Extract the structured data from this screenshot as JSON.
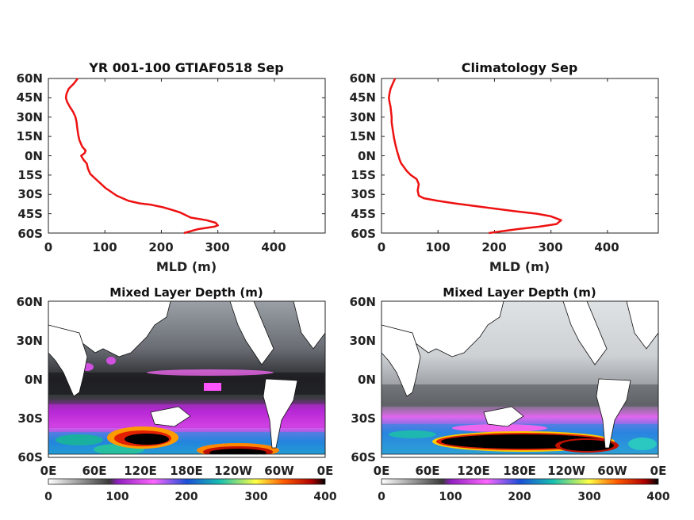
{
  "figure": {
    "top_left": {
      "title": "YR 001-100 GTIAF0518 Sep",
      "xlabel": "MLD (m)",
      "xticks": [
        "0",
        "100",
        "200",
        "300",
        "400"
      ],
      "yticks": [
        "60N",
        "45N",
        "30N",
        "15N",
        "0N",
        "15S",
        "30S",
        "45S",
        "60S"
      ]
    },
    "top_right": {
      "title": "Climatology Sep",
      "xlabel": "MLD (m)",
      "xticks": [
        "0",
        "100",
        "200",
        "300",
        "400"
      ],
      "yticks": [
        "60N",
        "45N",
        "30N",
        "15N",
        "0N",
        "15S",
        "30S",
        "45S",
        "60S"
      ]
    },
    "bottom_left": {
      "title": "Mixed Layer Depth (m)",
      "lon_ticks": [
        "0E",
        "60E",
        "120E",
        "180E",
        "120W",
        "60W",
        "0E"
      ],
      "lat_ticks": [
        "60N",
        "30N",
        "0N",
        "30S",
        "60S"
      ],
      "colorbar_ticks": [
        "0",
        "100",
        "200",
        "300",
        "400"
      ]
    },
    "bottom_right": {
      "title": "Mixed Layer Depth (m)",
      "lon_ticks": [
        "0E",
        "60E",
        "120E",
        "180E",
        "120W",
        "60W",
        "0E"
      ],
      "lat_ticks": [
        "60N",
        "30N",
        "0N",
        "30S",
        "60S"
      ],
      "colorbar_ticks": [
        "0",
        "100",
        "200",
        "300",
        "400"
      ]
    },
    "line_color": "#ee1111"
  },
  "chart_data": [
    {
      "type": "line",
      "title": "YR 001-100 GTIAF0518 Sep",
      "xlabel": "MLD (m)",
      "ylabel": "",
      "xlim": [
        0,
        490
      ],
      "ylim": [
        -60,
        60
      ],
      "series": [
        {
          "x": [
            52,
            45,
            36,
            32,
            31,
            33,
            38,
            44,
            48,
            50,
            51,
            53,
            55,
            60,
            66,
            64,
            58,
            62,
            68,
            70,
            74,
            86,
            101,
            121,
            142,
            162,
            182,
            203,
            219,
            233,
            252,
            280,
            296,
            300,
            294,
            265,
            240
          ],
          "y": [
            60,
            56,
            52,
            48,
            45,
            42,
            38,
            34,
            30,
            26,
            22,
            16,
            12,
            7,
            4,
            2,
            0,
            -3,
            -6,
            -10,
            -14,
            -19,
            -25,
            -31,
            -35,
            -37,
            -38,
            -40,
            -42,
            -44,
            -48,
            -50,
            -52,
            -54,
            -55,
            -57,
            -60
          ]
        }
      ]
    },
    {
      "type": "line",
      "title": "Climatology Sep",
      "xlabel": "MLD (m)",
      "ylabel": "",
      "xlim": [
        0,
        490
      ],
      "ylim": [
        -60,
        60
      ],
      "series": [
        {
          "x": [
            24,
            20,
            16,
            14,
            13,
            14,
            16,
            17,
            18,
            18,
            20,
            22,
            25,
            28,
            30,
            32,
            35,
            40,
            45,
            52,
            62,
            66,
            64,
            66,
            75,
            100,
            130,
            165,
            200,
            235,
            275,
            300,
            318,
            310,
            280,
            240,
            190
          ],
          "y": [
            60,
            56,
            52,
            48,
            45,
            42,
            38,
            34,
            30,
            26,
            20,
            14,
            8,
            3,
            0,
            -3,
            -6,
            -9,
            -12,
            -15,
            -18,
            -22,
            -27,
            -31,
            -33,
            -35,
            -37,
            -39,
            -41,
            -43,
            -45,
            -47,
            -50,
            -53,
            -55,
            -57,
            -60
          ]
        }
      ]
    },
    {
      "type": "heatmap",
      "title": "Mixed Layer Depth (m)",
      "x_ticks": [
        "0E",
        "60E",
        "120E",
        "180E",
        "120W",
        "60W",
        "0E"
      ],
      "y_ticks": [
        "60N",
        "30N",
        "0N",
        "30S",
        "60S"
      ],
      "colorbar": {
        "range": [
          0,
          400
        ],
        "ticks": [
          0,
          100,
          200,
          300,
          400
        ]
      }
    },
    {
      "type": "heatmap",
      "title": "Mixed Layer Depth (m)",
      "x_ticks": [
        "0E",
        "60E",
        "120E",
        "180E",
        "120W",
        "60W",
        "0E"
      ],
      "y_ticks": [
        "60N",
        "30N",
        "0N",
        "30S",
        "60S"
      ],
      "colorbar": {
        "range": [
          0,
          400
        ],
        "ticks": [
          0,
          100,
          200,
          300,
          400
        ]
      }
    }
  ]
}
